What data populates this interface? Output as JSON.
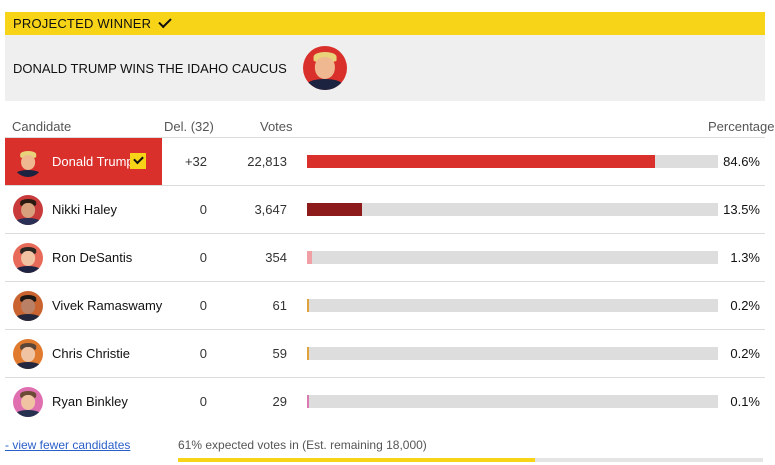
{
  "banner": {
    "label": "PROJECTED WINNER"
  },
  "headline": {
    "text": "DONALD TRUMP WINS THE IDAHO CAUCUS"
  },
  "table": {
    "headers": {
      "candidate": "Candidate",
      "delegates": "Del. (32)",
      "votes": "Votes",
      "percentage": "Percentage"
    },
    "rows": [
      {
        "name": "Donald Trump",
        "delegates": "+32",
        "votes": "22,813",
        "pct": "84.6%",
        "share": 0.846,
        "winner": true,
        "bar_color": "#d9302b",
        "avatar_bg": "#d9302b",
        "skin": "#f0b890",
        "hair_color": "#e8d27a",
        "suit_color": "#1c2340"
      },
      {
        "name": "Nikki Haley",
        "delegates": "0",
        "votes": "3,647",
        "pct": "13.5%",
        "share": 0.135,
        "winner": false,
        "bar_color": "#8e1b1b",
        "avatar_bg": "#c93a3a",
        "skin": "#d8a07c",
        "hair_color": "#2a1a12",
        "suit_color": "#2a2f55"
      },
      {
        "name": "Ron DeSantis",
        "delegates": "0",
        "votes": "354",
        "pct": "1.3%",
        "share": 0.013,
        "winner": false,
        "bar_color": "#f0a0a5",
        "avatar_bg": "#e86b5a",
        "skin": "#f0c3a2",
        "hair_color": "#2b2622",
        "suit_color": "#1e2442"
      },
      {
        "name": "Vivek Ramaswamy",
        "delegates": "0",
        "votes": "61",
        "pct": "0.2%",
        "share": 0.002,
        "winner": false,
        "bar_color": "#e0a23a",
        "avatar_bg": "#c9632f",
        "skin": "#b98066",
        "hair_color": "#1c1714",
        "suit_color": "#23263a"
      },
      {
        "name": "Chris Christie",
        "delegates": "0",
        "votes": "59",
        "pct": "0.2%",
        "share": 0.002,
        "winner": false,
        "bar_color": "#e0a23a",
        "avatar_bg": "#e07a2e",
        "skin": "#f0c3a2",
        "hair_color": "#5a4636",
        "suit_color": "#22273f"
      },
      {
        "name": "Ryan Binkley",
        "delegates": "0",
        "votes": "29",
        "pct": "0.1%",
        "share": 0.001,
        "winner": false,
        "bar_color": "#d97ab0",
        "avatar_bg": "#e06fb0",
        "skin": "#f0c3a2",
        "hair_color": "#6b4a36",
        "suit_color": "#26304f"
      }
    ]
  },
  "footer": {
    "link": "- view fewer candidates",
    "status": "61% expected votes in (Est. remaining 18,000)",
    "expected_in": 0.61,
    "progress_color": "#f7d417"
  },
  "icons": {
    "check": "check-icon"
  }
}
